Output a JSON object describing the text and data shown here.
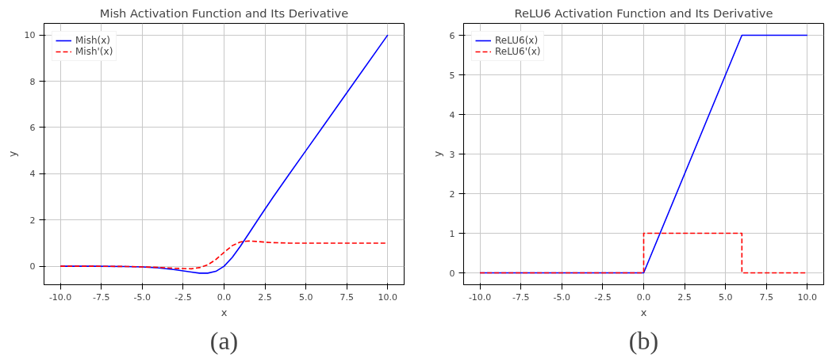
{
  "chart_data": [
    {
      "type": "line",
      "title": "Mish Activation Function and Its Derivative",
      "xlabel": "x",
      "ylabel": "y",
      "annotations": [
        "(a)"
      ],
      "x": [
        -10,
        -8,
        -6,
        -5,
        -4,
        -3,
        -2,
        -1.5,
        -1,
        -0.5,
        0,
        0.5,
        1,
        1.5,
        2,
        2.5,
        3,
        4,
        5,
        6,
        8,
        10
      ],
      "series": [
        {
          "name": "Mish(x)",
          "color": "#0000ff",
          "line_style": "solid",
          "values": [
            0,
            0,
            -0.01,
            -0.03,
            -0.07,
            -0.15,
            -0.25,
            -0.3,
            -0.3,
            -0.22,
            0,
            0.38,
            0.87,
            1.4,
            1.94,
            2.47,
            2.99,
            4.0,
            5.0,
            6.0,
            8.0,
            10.0
          ]
        },
        {
          "name": "Mish'(x)",
          "color": "#ff0000",
          "line_style": "dashed",
          "values": [
            0,
            0,
            -0.01,
            -0.03,
            -0.05,
            -0.09,
            -0.11,
            -0.06,
            0.06,
            0.29,
            0.6,
            0.89,
            1.05,
            1.09,
            1.07,
            1.04,
            1.02,
            1.0,
            1.0,
            1.0,
            1.0,
            1.0
          ]
        }
      ],
      "xlim": [
        -11,
        11
      ],
      "ylim": [
        -0.8,
        10.5
      ],
      "xticks": [
        {
          "value": -10,
          "label": "-10.0"
        },
        {
          "value": -7.5,
          "label": "-7.5"
        },
        {
          "value": -5,
          "label": "-5.0"
        },
        {
          "value": -2.5,
          "label": "-2.5"
        },
        {
          "value": 0,
          "label": "0.0"
        },
        {
          "value": 2.5,
          "label": "2.5"
        },
        {
          "value": 5,
          "label": "5.0"
        },
        {
          "value": 7.5,
          "label": "7.5"
        },
        {
          "value": 10,
          "label": "10.0"
        }
      ],
      "yticks": [
        0,
        2,
        4,
        6,
        8,
        10
      ],
      "grid": true,
      "legend": "top left"
    },
    {
      "type": "line",
      "title": "ReLU6 Activation Function and Its Derivative",
      "xlabel": "x",
      "ylabel": "y",
      "annotations": [
        "(b)"
      ],
      "series": [
        {
          "name": "ReLU6(x)",
          "color": "#0000ff",
          "line_style": "solid",
          "x": [
            -10,
            0,
            6,
            10
          ],
          "values": [
            0,
            0,
            6,
            6
          ]
        },
        {
          "name": "ReLU6'(x)",
          "color": "#ff0000",
          "line_style": "dashed",
          "x": [
            -10,
            0,
            0,
            6,
            6,
            10
          ],
          "values": [
            0,
            0,
            1,
            1,
            0,
            0
          ]
        }
      ],
      "xlim": [
        -11,
        11
      ],
      "ylim": [
        -0.3,
        6.3
      ],
      "xticks": [
        {
          "value": -10,
          "label": "-10.0"
        },
        {
          "value": -7.5,
          "label": "-7.5"
        },
        {
          "value": -5,
          "label": "-5.0"
        },
        {
          "value": -2.5,
          "label": "-2.5"
        },
        {
          "value": 0,
          "label": "0.0"
        },
        {
          "value": 2.5,
          "label": "2.5"
        },
        {
          "value": 5,
          "label": "5.0"
        },
        {
          "value": 7.5,
          "label": "7.5"
        },
        {
          "value": 10,
          "label": "10.0"
        }
      ],
      "yticks": [
        0,
        1,
        2,
        3,
        4,
        5,
        6
      ],
      "grid": true,
      "legend": "top left"
    }
  ]
}
